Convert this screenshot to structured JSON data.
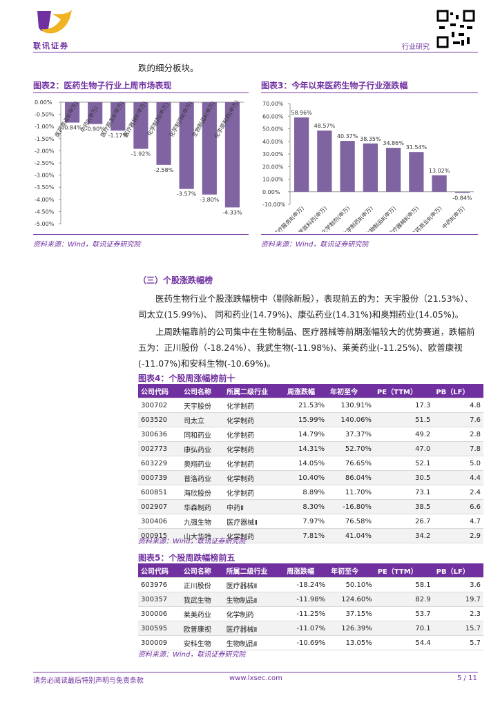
{
  "header": {
    "logo_text": "联讯证券",
    "section": "行业研究"
  },
  "intro": "跌的细分板块。",
  "chart_data": [
    {
      "type": "bar",
      "title": "图表2：医药生物子行业上周市场表现",
      "source": "资料来源：Wind，联讯证券研究院",
      "categories": [
        "医药商业Ⅱ(申万)",
        "中药Ⅱ(申万)",
        "医疗服务Ⅱ(申万)",
        "医疗器械Ⅱ(申万)",
        "化学制剂(申万)",
        "化学制药Ⅱ(申万)",
        "生物制品Ⅱ(申万)",
        "化学原料药(申万)"
      ],
      "values": [
        -0.84,
        -0.9,
        -1.17,
        -1.92,
        -2.58,
        -3.57,
        -3.8,
        -4.33
      ],
      "value_labels": [
        "-0.84%",
        "-0.90%",
        "-1.17%",
        "-1.92%",
        "-2.58%",
        "-3.57%",
        "-3.80%",
        "-4.33%"
      ],
      "color": "#8064a2",
      "ylim": [
        -5,
        0
      ],
      "yticks": [
        {
          "value": 0,
          "label": "0.00%"
        },
        {
          "value": -0.5,
          "label": "-0.50%"
        },
        {
          "value": -1,
          "label": "-1.00%"
        },
        {
          "value": -1.5,
          "label": "-1.50%"
        },
        {
          "value": -2,
          "label": "-2.00%"
        },
        {
          "value": -2.5,
          "label": "-2.50%"
        },
        {
          "value": -3,
          "label": "-3.00%"
        },
        {
          "value": -3.5,
          "label": "-3.50%"
        },
        {
          "value": -4,
          "label": "-4.00%"
        },
        {
          "value": -4.5,
          "label": "-4.50%"
        },
        {
          "value": -5,
          "label": "-5.00%"
        }
      ],
      "grid": false
    },
    {
      "type": "bar",
      "title": "图表3：今年以来医药生物子行业涨跌幅",
      "source": "资料来源：Wind，联讯证券研究院",
      "categories": [
        "医疗服务Ⅱ(申万)",
        "化学原料药(申万)",
        "化学制剂(申万)",
        "化学制药Ⅱ(申万)",
        "生物制品Ⅱ(申万)",
        "医疗器械Ⅱ(申万)",
        "医药商业Ⅱ(申万)",
        "中药Ⅱ(申万)"
      ],
      "values": [
        58.96,
        48.57,
        40.37,
        38.35,
        34.86,
        31.54,
        13.02,
        -0.84
      ],
      "value_labels": [
        "58.96%",
        "48.57%",
        "40.37%",
        "38.35%",
        "34.86%",
        "31.54%",
        "13.02%",
        "-0.84%"
      ],
      "color": "#8064a2",
      "ylim": [
        -10,
        70
      ],
      "yticks": [
        {
          "value": 70,
          "label": "70.00%"
        },
        {
          "value": 60,
          "label": "60.00%"
        },
        {
          "value": 50,
          "label": "50.00%"
        },
        {
          "value": 40,
          "label": "40.00%"
        },
        {
          "value": 30,
          "label": "30.00%"
        },
        {
          "value": 20,
          "label": "20.00%"
        },
        {
          "value": 10,
          "label": "10.00%"
        },
        {
          "value": 0,
          "label": "0.00%"
        },
        {
          "value": -10,
          "label": "-10.00%"
        }
      ],
      "grid": false
    }
  ],
  "section": {
    "heading": "（三）个股涨跌幅榜",
    "paragraphs": [
      "医药生物行业个股涨跌幅榜中（剔除新股），表现前五的为：天宇股份（21.53%）、司太立(15.99%)、 同和药业(14.79%)、康弘药业(14.31%)和奥翔药业(14.05%)。",
      "上周跌幅靠前的公司集中在生物制品、医疗器械等前期涨幅较大的优势赛道，跌幅前五为：正川股份（-18.24%）、我武生物(-11.98%)、莱美药业(-11.25%)、欧普康视(-11.07%)和安科生物(-10.69%)。"
    ]
  },
  "table4": {
    "title": "图表4：个股周涨幅榜前十",
    "source": "资料来源：Wind，联讯证券研究院",
    "columns": [
      "公司代码",
      "公司名称",
      "所属二级行业",
      "周涨跌幅",
      "年初至今",
      "PE（TTM）",
      "PB（LF）"
    ],
    "rows": [
      [
        "300702",
        "天宇股份",
        "化学制药",
        "21.53%",
        "130.91%",
        "17.3",
        "4.8"
      ],
      [
        "603520",
        "司太立",
        "化学制药",
        "15.99%",
        "140.06%",
        "51.5",
        "7.6"
      ],
      [
        "300636",
        "同和药业",
        "化学制药",
        "14.79%",
        "37.37%",
        "49.2",
        "2.8"
      ],
      [
        "002773",
        "康弘药业",
        "化学制药",
        "14.31%",
        "52.70%",
        "47.0",
        "7.8"
      ],
      [
        "603229",
        "奥翔药业",
        "化学制药",
        "14.05%",
        "76.65%",
        "52.1",
        "5.0"
      ],
      [
        "000739",
        "普洛药业",
        "化学制药",
        "10.40%",
        "86.04%",
        "30.5",
        "4.4"
      ],
      [
        "600851",
        "海欣股份",
        "化学制药",
        "8.89%",
        "11.70%",
        "73.1",
        "2.4"
      ],
      [
        "002907",
        "华森制药",
        "中药Ⅱ",
        "8.30%",
        "-16.80%",
        "38.5",
        "6.6"
      ],
      [
        "300406",
        "九强生物",
        "医疗器械Ⅱ",
        "7.97%",
        "76.58%",
        "26.7",
        "4.7"
      ],
      [
        "000915",
        "山大华特",
        "化学制药",
        "7.81%",
        "41.04%",
        "34.2",
        "2.9"
      ]
    ]
  },
  "table5": {
    "title": "图表5：个股周跌幅榜前五",
    "source": "资料来源：Wind，联讯证券研究院",
    "columns": [
      "公司代码",
      "公司名称",
      "所属二级行业",
      "周涨跌幅",
      "年初至今",
      "PE（TTM）",
      "PB（LF）"
    ],
    "rows": [
      [
        "603976",
        "正川股份",
        "医疗器械Ⅱ",
        "-18.24%",
        "50.10%",
        "58.1",
        "3.6"
      ],
      [
        "300357",
        "我武生物",
        "生物制品Ⅱ",
        "-11.98%",
        "124.60%",
        "82.9",
        "19.7"
      ],
      [
        "300006",
        "莱美药业",
        "化学制药",
        "-11.25%",
        "37.15%",
        "53.7",
        "2.3"
      ],
      [
        "300595",
        "欧普康视",
        "医疗器械Ⅱ",
        "-11.07%",
        "126.39%",
        "70.1",
        "15.7"
      ],
      [
        "300009",
        "安科生物",
        "生物制品Ⅱ",
        "-10.69%",
        "13.05%",
        "54.4",
        "5.7"
      ]
    ]
  },
  "footer": {
    "disclaimer": "请务必阅读最后特别声明与免责条款",
    "url": "www.lxsec.com",
    "page": "5 / 11"
  }
}
